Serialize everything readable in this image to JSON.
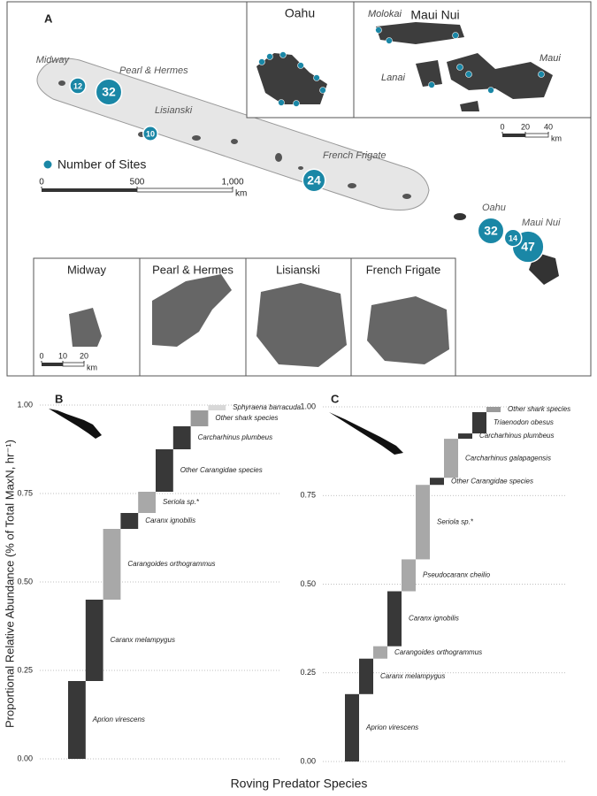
{
  "figure": {
    "x_label": "Roving Predator Species",
    "y_label": "Proportional Relative Abundance (% of Total MaxN, hr⁻¹)"
  },
  "chart_data": [
    {
      "type": "map",
      "panel": "A",
      "legend": "Number of Sites",
      "color": "#1a87a6",
      "sites": {
        "labels": [
          "Midway",
          "Pearl & Hermes",
          "Lisianski",
          "French Frigate",
          "Oahu",
          "Maui Nui",
          null
        ],
        "values": [
          12,
          32,
          10,
          24,
          32,
          47,
          14
        ]
      },
      "scale": {
        "xlim": [
          0,
          1000
        ],
        "xticks": [
          0,
          500,
          {
            "value": 1000,
            "label": "1,000"
          }
        ],
        "unit": "km"
      },
      "insets": [
        "Oahu",
        "Maui Nui",
        "Midway",
        "Pearl & Hermes",
        "Lisianski",
        "French Frigate"
      ],
      "inset_labels": [
        "Molokai",
        "Lanai",
        "Maui"
      ],
      "maui_scale": {
        "xlim": [
          0,
          40
        ],
        "xticks": [
          0,
          20,
          40
        ],
        "unit": "km"
      },
      "midway_scale": {
        "xlim": [
          0,
          20
        ],
        "xticks": [
          0,
          10,
          20
        ],
        "unit": "km"
      }
    },
    {
      "type": "waterfall",
      "panel": "B",
      "ylim": [
        0,
        1
      ],
      "grid": true,
      "yticks": [
        {
          "value": 0,
          "label": "0.00"
        },
        {
          "value": 0.25,
          "label": "0.25"
        },
        {
          "value": 0.5,
          "label": "0.50"
        },
        {
          "value": 0.75,
          "label": "0.75"
        },
        {
          "value": 1,
          "label": "1.00"
        }
      ],
      "categories": [
        "Aprion virescens",
        "Caranx melampygus",
        "Carangoides orthogrammus",
        "Caranx ignobilis",
        "Seriola sp.*",
        "Other Carangidae species",
        "Carcharhinus plumbeus",
        "Other shark species",
        "Sphyraena barracuda"
      ],
      "values": [
        0.22,
        0.23,
        0.2,
        0.045,
        0.06,
        0.12,
        0.065,
        0.045,
        0.015
      ],
      "colors": [
        "#383838",
        "#383838",
        "#a8a8a8",
        "#383838",
        "#a8a8a8",
        "#383838",
        "#383838",
        "#9a9a9a",
        "#d8d8d8"
      ]
    },
    {
      "type": "waterfall",
      "panel": "C",
      "ylim": [
        0,
        1
      ],
      "grid": true,
      "yticks": [
        {
          "value": 0,
          "label": "0.00"
        },
        {
          "value": 0.25,
          "label": "0.25"
        },
        {
          "value": 0.5,
          "label": "0.50"
        },
        {
          "value": 0.75,
          "label": "0.75"
        },
        {
          "value": 1,
          "label": "1.00"
        }
      ],
      "categories": [
        "Aprion virescens",
        "Caranx melampygus",
        "Carangoides orthogrammus",
        "Caranx ignobilis",
        "Pseudocaranx cheilio",
        "Seriola sp.*",
        "Other Carangidae species",
        "Carcharhinus galapagensis",
        "Carcharhinus plumbeus",
        "Triaenodon obesus",
        "Other shark species"
      ],
      "values": [
        0.19,
        0.1,
        0.035,
        0.155,
        0.09,
        0.21,
        0.02,
        0.11,
        0.015,
        0.06,
        0.015
      ],
      "colors": [
        "#383838",
        "#383838",
        "#a8a8a8",
        "#383838",
        "#a8a8a8",
        "#a8a8a8",
        "#383838",
        "#a8a8a8",
        "#383838",
        "#383838",
        "#9a9a9a"
      ]
    }
  ]
}
